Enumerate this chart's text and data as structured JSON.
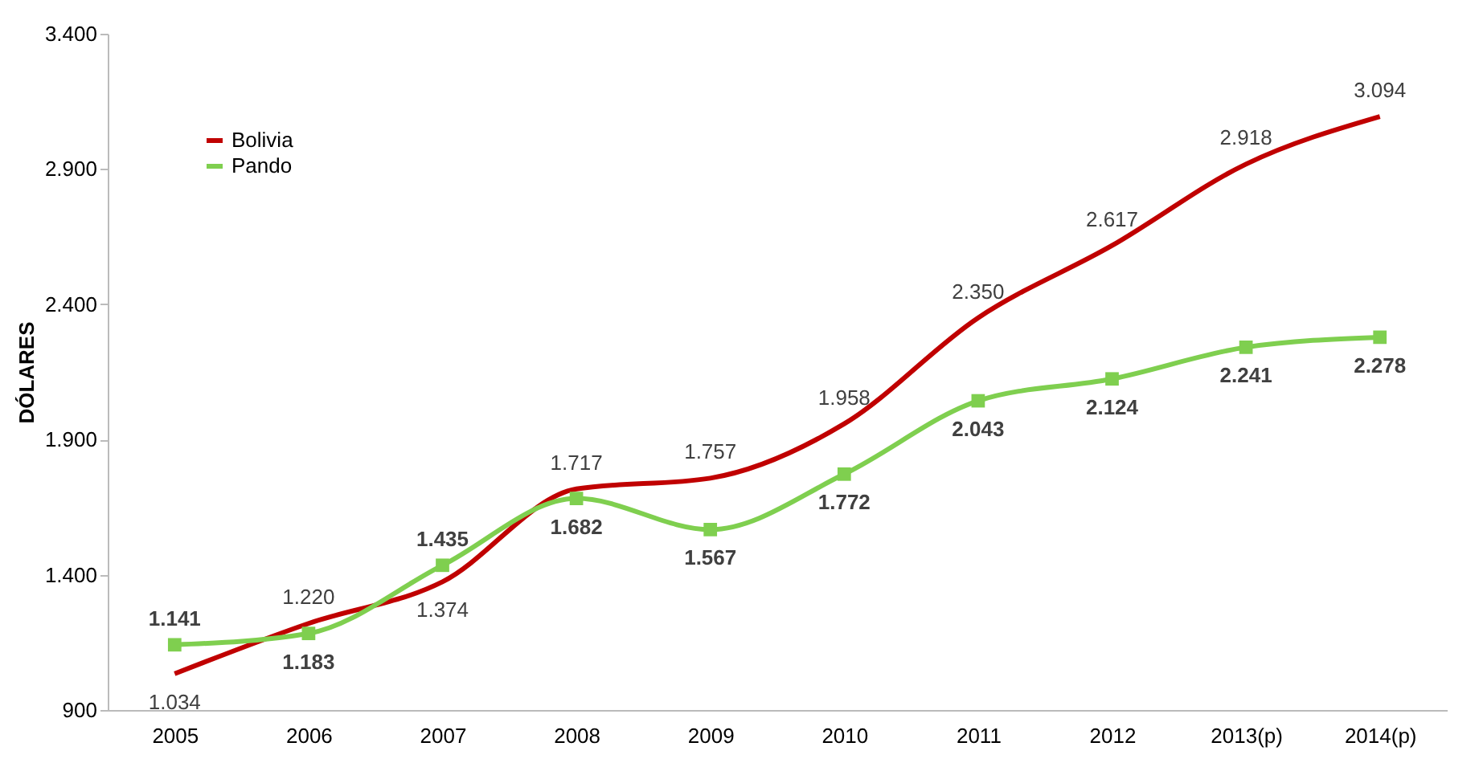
{
  "chart_data": {
    "type": "line",
    "ylabel": "DÓLARES",
    "categories": [
      "2005",
      "2006",
      "2007",
      "2008",
      "2009",
      "2010",
      "2011",
      "2012",
      "2013(p)",
      "2014(p)"
    ],
    "series": [
      {
        "name": "Bolivia",
        "color": "#c00000",
        "marker": "none",
        "values": [
          1034,
          1220,
          1374,
          1717,
          1757,
          1958,
          2350,
          2617,
          2918,
          3094
        ],
        "value_labels": [
          "1.034",
          "1.220",
          "1.374",
          "1.717",
          "1.757",
          "1.958",
          "2.350",
          "2.617",
          "2.918",
          "3.094"
        ]
      },
      {
        "name": "Pando",
        "color": "#7fcf4f",
        "marker": "square",
        "values": [
          1141,
          1183,
          1435,
          1682,
          1567,
          1772,
          2043,
          2124,
          2241,
          2278
        ],
        "value_labels": [
          "1.141",
          "1.183",
          "1.435",
          "1.682",
          "1.567",
          "1.772",
          "2.043",
          "2.124",
          "2.241",
          "2.278"
        ]
      }
    ],
    "ylim": [
      900,
      3400
    ],
    "yticks": [
      {
        "value": 900,
        "label": "900"
      },
      {
        "value": 1400,
        "label": "1.400"
      },
      {
        "value": 1900,
        "label": "1.900"
      },
      {
        "value": 2400,
        "label": "2.400"
      },
      {
        "value": 2900,
        "label": "2.900"
      },
      {
        "value": 3400,
        "label": "3.400"
      }
    ],
    "grid": false,
    "legend": "top left",
    "line_style": "solid"
  }
}
